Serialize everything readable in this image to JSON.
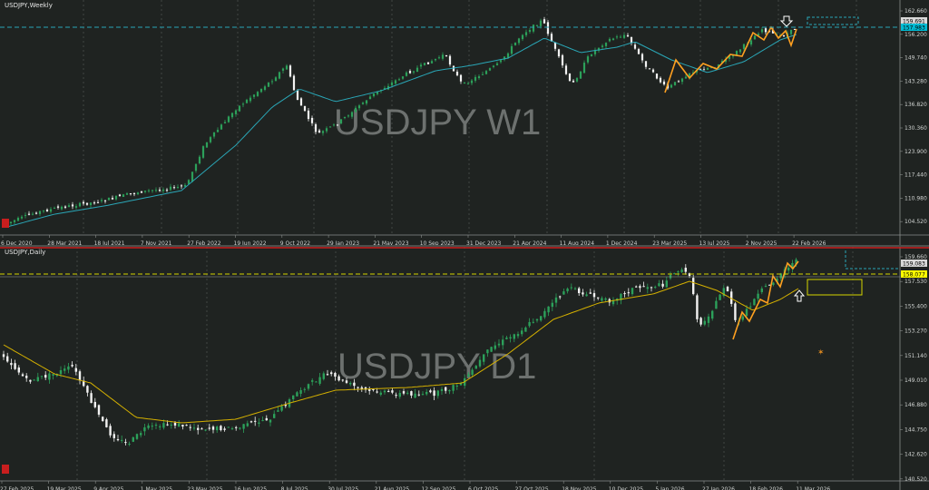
{
  "panels": {
    "w1": {
      "label": "USDJPY,Weekly",
      "watermark": "USDJPY W1",
      "x_ticks": [
        "6 Dec 2020",
        "28 Mar 2021",
        "18 Jul 2021",
        "7 Nov 2021",
        "27 Feb 2022",
        "19 Jun 2022",
        "9 Oct 2022",
        "29 Jan 2023",
        "21 May 2023",
        "10 Sep 2023",
        "31 Dec 2023",
        "21 Apr 2024",
        "11 Aug 2024",
        "1 Dec 2024",
        "23 Mar 2025",
        "13 Jul 2025",
        "2 Nov 2025",
        "22 Feb 2026"
      ],
      "y_ticks": [
        "162.660",
        "156.200",
        "149.740",
        "143.280",
        "136.820",
        "130.360",
        "123.900",
        "117.440",
        "110.980",
        "104.520"
      ],
      "price_tags": [
        {
          "text": "159.691",
          "bg": "#d8d8d8",
          "fg": "#000000"
        },
        {
          "text": "157.983",
          "bg": "#00bcd4",
          "fg": "#000000"
        }
      ],
      "colors": {
        "bull": "#2ca05a",
        "bear": "#f2f2f2",
        "ma": "#2aa6b6",
        "zigzag": "#ffa020",
        "hline": "#2aa6b6"
      }
    },
    "d1": {
      "label": "USDJPY,Daily",
      "watermark": "USDJPY D1",
      "x_ticks": [
        "27 Feb 2025",
        "19 Mar 2025",
        "9 Apr 2025",
        "1 May 2025",
        "23 May 2025",
        "16 Jun 2025",
        "8 Jul 2025",
        "30 Jul 2025",
        "21 Aug 2025",
        "12 Sep 2025",
        "6 Oct 2025",
        "27 Oct 2025",
        "18 Nov 2025",
        "10 Dec 2025",
        "5 Jan 2026",
        "27 Jan 2026",
        "18 Feb 2026",
        "11 Mar 2026"
      ],
      "y_ticks": [
        "159.660",
        "157.530",
        "155.400",
        "153.270",
        "151.140",
        "149.010",
        "146.880",
        "144.750",
        "142.620",
        "140.520"
      ],
      "price_tags": [
        {
          "text": "159.083",
          "bg": "#d8d8d8",
          "fg": "#000000"
        },
        {
          "text": "158.077",
          "bg": "#ffff00",
          "fg": "#000000"
        }
      ],
      "colors": {
        "bull": "#2ca05a",
        "bear": "#f2f2f2",
        "ma": "#d4b000",
        "zigzag": "#ffa020",
        "hline": "#d4d400",
        "redline": "#c81e1e"
      }
    }
  }
}
